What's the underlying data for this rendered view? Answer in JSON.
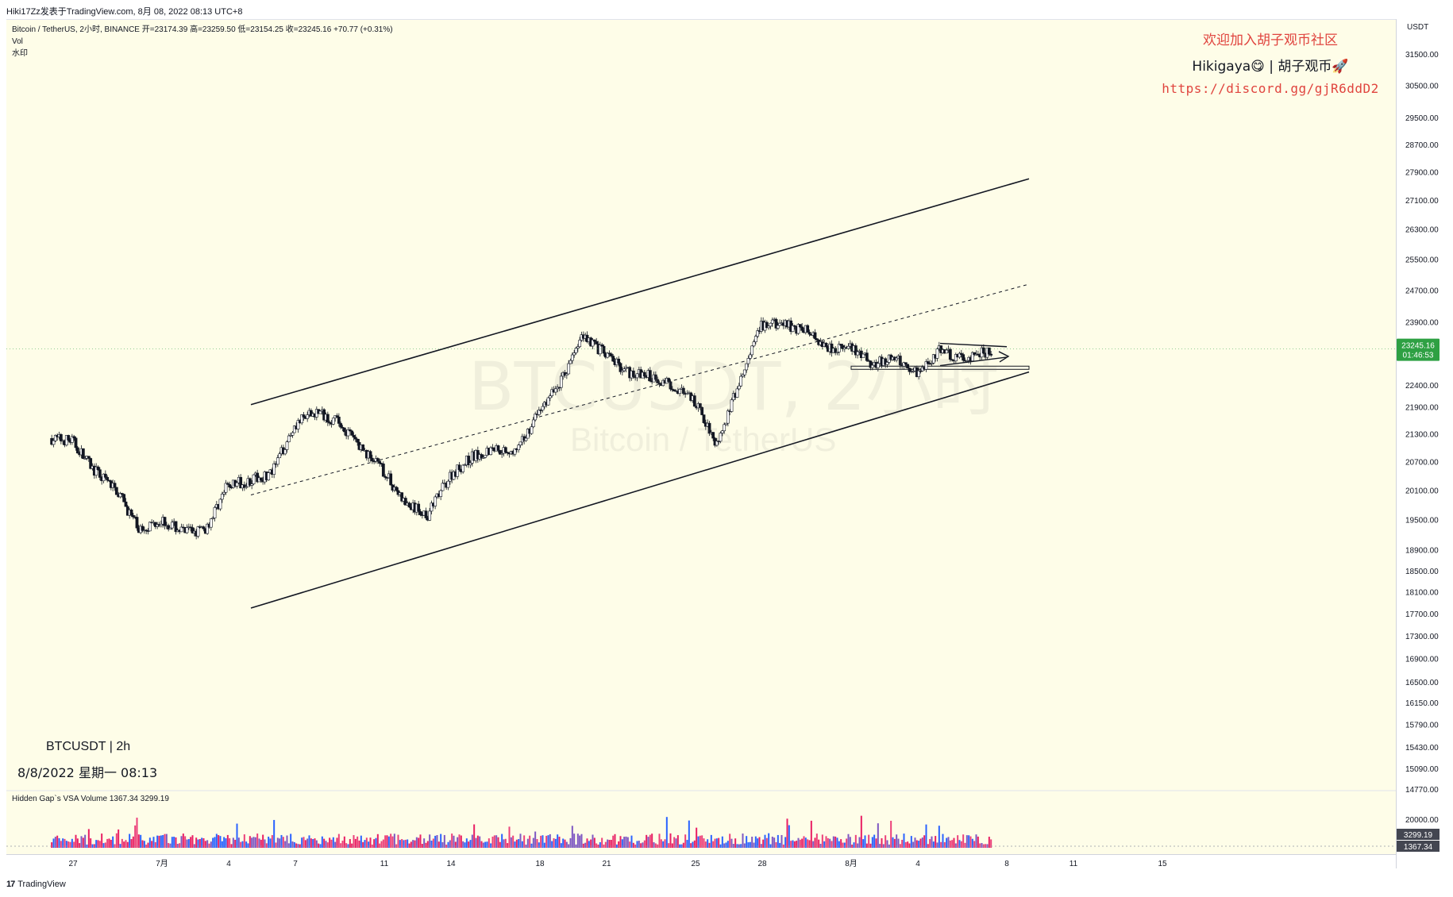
{
  "header": {
    "publish_note": "Hiki17Zz发表于TradingView.com, 8月 08, 2022 08:13 UTC+8"
  },
  "legend": {
    "symbol_line": "Bitcoin / TetherUS, 2小时, BINANCE  开=23174.39  高=23259.50  低=23154.25  收=23245.16  +70.77 (+0.31%)",
    "vol_label": "Vol",
    "watermark_label": "水印"
  },
  "promo": {
    "line1": "欢迎加入胡子观币社区",
    "line2": "Hikigaya😋 | 胡子观币🚀",
    "line3": "https://discord.gg/gjR6ddD2"
  },
  "watermark": {
    "main": "BTCUSDT, 2小时",
    "sub": "Bitcoin / TetherUS"
  },
  "info_box": {
    "symbol": "BTCUSDT | 2h",
    "datetime": "8/8/2022 星期一 08:13"
  },
  "volume_pane": {
    "legend": "Hidden Gap`s VSA Volume  1367.34  3299.19"
  },
  "footer": {
    "logo": "17",
    "brand": "TradingView"
  },
  "price_scale": {
    "currency": "USDT",
    "current_price": "23245.16",
    "countdown": "01:46:53",
    "vol_badge_1": "3299.19",
    "vol_badge_2": "1367.34",
    "colors": {
      "up": "#26a69a",
      "price_badge": "#2ea043",
      "volume_badge": "#434651"
    }
  },
  "chart_data": {
    "type": "candlestick",
    "interval": "2h",
    "y_scale": "log",
    "y_ticks": [
      31500,
      30500,
      29500,
      28700,
      27900,
      27100,
      26300,
      25500,
      24700,
      23900,
      22400,
      21900,
      21300,
      20700,
      20100,
      19500,
      18900,
      18500,
      18100,
      17700,
      17300,
      16900,
      16500,
      16150,
      15790,
      15430,
      15090,
      14770
    ],
    "volume_ticks": [
      20000
    ],
    "x_ticks": [
      "27",
      "7月",
      "4",
      "7",
      "11",
      "14",
      "18",
      "21",
      "25",
      "28",
      "8月",
      "4",
      "8",
      "11",
      "15"
    ],
    "x_tick_days": [
      "2022-06-27",
      "2022-07-01",
      "2022-07-04",
      "2022-07-07",
      "2022-07-11",
      "2022-07-14",
      "2022-07-18",
      "2022-07-21",
      "2022-07-25",
      "2022-07-28",
      "2022-08-01",
      "2022-08-04",
      "2022-08-08",
      "2022-08-11",
      "2022-08-15"
    ],
    "close_path": [
      {
        "t": "2022-06-26",
        "p": 21200
      },
      {
        "t": "2022-06-27",
        "p": 21150
      },
      {
        "t": "2022-06-28",
        "p": 20500
      },
      {
        "t": "2022-06-29",
        "p": 20100
      },
      {
        "t": "2022-06-30",
        "p": 19300
      },
      {
        "t": "2022-07-01",
        "p": 19500
      },
      {
        "t": "2022-07-02",
        "p": 19250
      },
      {
        "t": "2022-07-03",
        "p": 19300
      },
      {
        "t": "2022-07-04",
        "p": 20200
      },
      {
        "t": "2022-07-05",
        "p": 20300
      },
      {
        "t": "2022-07-06",
        "p": 20450
      },
      {
        "t": "2022-07-07",
        "p": 21500
      },
      {
        "t": "2022-07-08",
        "p": 21800
      },
      {
        "t": "2022-07-09",
        "p": 21550
      },
      {
        "t": "2022-07-10",
        "p": 21000
      },
      {
        "t": "2022-07-11",
        "p": 20500
      },
      {
        "t": "2022-07-12",
        "p": 19800
      },
      {
        "t": "2022-07-13",
        "p": 19600
      },
      {
        "t": "2022-07-14",
        "p": 20400
      },
      {
        "t": "2022-07-15",
        "p": 20800
      },
      {
        "t": "2022-07-16",
        "p": 21000
      },
      {
        "t": "2022-07-17",
        "p": 20900
      },
      {
        "t": "2022-07-18",
        "p": 21800
      },
      {
        "t": "2022-07-19",
        "p": 22500
      },
      {
        "t": "2022-07-20",
        "p": 23600
      },
      {
        "t": "2022-07-21",
        "p": 23100
      },
      {
        "t": "2022-07-22",
        "p": 22700
      },
      {
        "t": "2022-07-23",
        "p": 22600
      },
      {
        "t": "2022-07-24",
        "p": 22400
      },
      {
        "t": "2022-07-25",
        "p": 22000
      },
      {
        "t": "2022-07-26",
        "p": 21100
      },
      {
        "t": "2022-07-27",
        "p": 22400
      },
      {
        "t": "2022-07-28",
        "p": 23800
      },
      {
        "t": "2022-07-29",
        "p": 23850
      },
      {
        "t": "2022-07-30",
        "p": 23700
      },
      {
        "t": "2022-07-31",
        "p": 23300
      },
      {
        "t": "2022-08-01",
        "p": 23250
      },
      {
        "t": "2022-08-02",
        "p": 22900
      },
      {
        "t": "2022-08-03",
        "p": 23000
      },
      {
        "t": "2022-08-04",
        "p": 22700
      },
      {
        "t": "2022-08-05",
        "p": 23200
      },
      {
        "t": "2022-08-06",
        "p": 23000
      },
      {
        "t": "2022-08-07",
        "p": 23150
      },
      {
        "t": "2022-08-08",
        "p": 23245.16
      }
    ],
    "drawings": {
      "channel_upper": [
        {
          "t": "2022-07-05",
          "p": 21950
        },
        {
          "t": "2022-08-09",
          "p": 27700
        }
      ],
      "channel_mid": [
        {
          "t": "2022-07-05",
          "p": 20000
        },
        {
          "t": "2022-08-09",
          "p": 24850
        }
      ],
      "channel_lower": [
        {
          "t": "2022-07-05",
          "p": 17800
        },
        {
          "t": "2022-08-09",
          "p": 22700
        }
      ],
      "support_line": [
        {
          "t": "2022-08-01",
          "p": 22800
        },
        {
          "t": "2022-08-09",
          "p": 22800
        }
      ],
      "triangle_upper": [
        {
          "t": "2022-08-05",
          "p": 23380
        },
        {
          "t": "2022-08-08",
          "p": 23300
        }
      ],
      "triangle_lower": [
        {
          "t": "2022-08-05",
          "p": 22850
        },
        {
          "t": "2022-08-08",
          "p": 23050
        }
      ]
    }
  }
}
